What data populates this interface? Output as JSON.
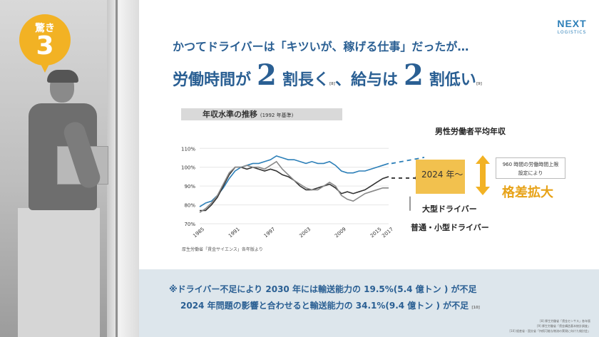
{
  "badge": {
    "label": "驚き",
    "number": "3"
  },
  "logo": {
    "line1": "NEXT",
    "line2": "LOGISTICS"
  },
  "headline": {
    "sub": "かつてドライバーは「キツいが、稼げる仕事」だったが…",
    "part1": "労働時間が",
    "num1": "2",
    "part2": "割長く",
    "note1": "[8]",
    "part3": "、給与は",
    "num2": "2",
    "part4": "割低い",
    "note2": "[9]"
  },
  "chart_data": {
    "type": "line",
    "title": "年収水準の推移",
    "subtitle": "(1992 年基準)",
    "x": [
      1985,
      1986,
      1987,
      1988,
      1989,
      1990,
      1991,
      1992,
      1993,
      1994,
      1995,
      1996,
      1997,
      1998,
      1999,
      2000,
      2001,
      2002,
      2003,
      2004,
      2005,
      2006,
      2007,
      2008,
      2009,
      2010,
      2011,
      2012,
      2013,
      2014,
      2015,
      2016,
      2017
    ],
    "x_ticks": [
      "1985",
      "1991",
      "1997",
      "2003",
      "2009",
      "2015",
      "2017"
    ],
    "y_ticks": [
      "70%",
      "80%",
      "90%",
      "100%",
      "110%"
    ],
    "ylim": [
      70,
      112
    ],
    "series": [
      {
        "name": "男性労働者平均年収",
        "color": "#2c7fb8",
        "values": [
          79,
          81,
          82,
          85,
          89,
          94,
          98,
          100,
          101,
          102,
          102,
          103,
          104,
          106,
          105,
          104,
          104,
          103,
          102,
          103,
          102,
          102,
          103,
          101,
          98,
          97,
          97,
          98,
          98,
          99,
          100,
          101,
          102
        ]
      },
      {
        "name": "大型ドライバー",
        "color": "#333333",
        "values": [
          77,
          77,
          80,
          84,
          90,
          96,
          100,
          100,
          99,
          100,
          99,
          98,
          99,
          98,
          96,
          95,
          93,
          90,
          88,
          88,
          89,
          90,
          91,
          89,
          86,
          87,
          86,
          87,
          88,
          90,
          92,
          94,
          95
        ]
      },
      {
        "name": "普通・小型ドライバー",
        "color": "#888888",
        "values": [
          76,
          78,
          81,
          85,
          91,
          97,
          100,
          100,
          101,
          100,
          100,
          99,
          101,
          103,
          99,
          96,
          93,
          91,
          89,
          88,
          88,
          90,
          92,
          90,
          85,
          83,
          82,
          84,
          86,
          87,
          88,
          89,
          89
        ]
      }
    ],
    "source": "厚生労働省「賃金サイエンス」各年版より"
  },
  "annotations": {
    "male": "男性労働者平均年収",
    "large": "大型ドライバー",
    "small": "普通・小型ドライバー",
    "year_box": "2024 年〜",
    "limit": [
      "960 時間の労働時間上限",
      "設定により"
    ],
    "gap": "格差拡大"
  },
  "footer": {
    "line1": "※ドライバー不足により 2030 年には輸送能力の 19.5%(5.4 億トン ) が不足",
    "line2": "2024 年問題の影響と合わせると輸送能力の 34.1%(9.4 億トン ) が不足",
    "note": "[10]",
    "refs": [
      "[8] 厚生労働省「賃金センサス」各年版",
      "[9] 厚生労働省「賃金構造基本統計調査」",
      "[10] 経産省・国交省「持続可能な物流の実現に向けた検討会」"
    ]
  },
  "colors": {
    "accent": "#2a5f93",
    "badge": "#f2b224",
    "highlight": "#f2c14e",
    "gap": "#e7a217"
  }
}
